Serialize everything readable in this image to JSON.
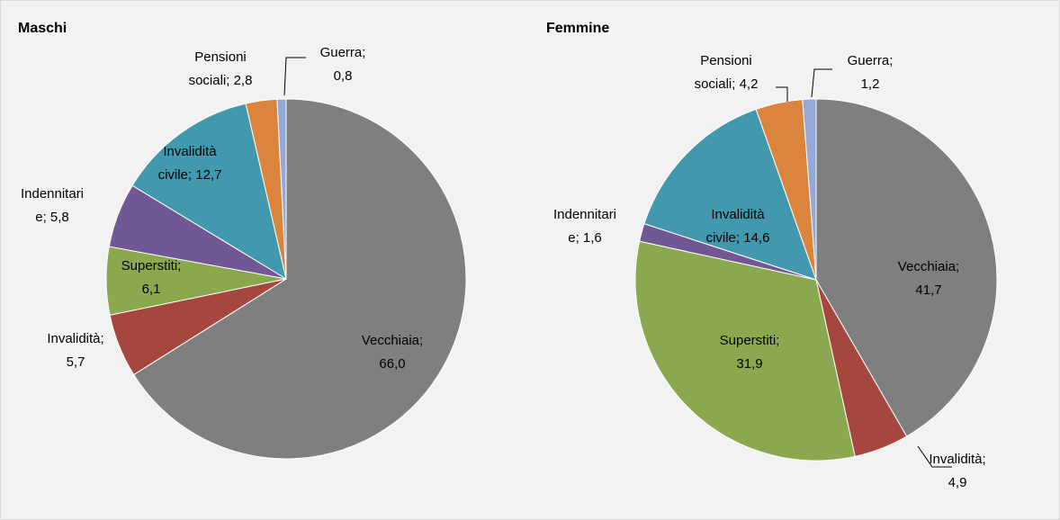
{
  "chart_data": [
    {
      "type": "pie",
      "title": "Maschi",
      "categories": [
        "Vecchiaia",
        "Invalidità",
        "Superstiti",
        "Indennitarie",
        "Invalidità civile",
        "Pensioni sociali",
        "Guerra"
      ],
      "values": [
        66.0,
        5.7,
        6.1,
        5.8,
        12.7,
        2.8,
        0.8
      ],
      "value_labels": [
        "Vecchiaia; 66,0",
        "Invalidità; 5,7",
        "Superstiti; 6,1",
        "Indennitarie; 5,8",
        "Invalidità civile; 12,7",
        "Pensioni sociali; 2,8",
        "Guerra; 0,8"
      ],
      "colors": [
        "#7f7f7f",
        "#a5463f",
        "#8aa84d",
        "#715895",
        "#4298ad",
        "#db843d",
        "#95a9d6"
      ]
    },
    {
      "type": "pie",
      "title": "Femmine",
      "categories": [
        "Vecchiaia",
        "Invalidità",
        "Superstiti",
        "Indennitarie",
        "Invalidità civile",
        "Pensioni sociali",
        "Guerra"
      ],
      "values": [
        41.7,
        4.9,
        31.9,
        1.6,
        14.6,
        4.2,
        1.2
      ],
      "value_labels": [
        "Vecchiaia; 41,7",
        "Invalidità; 4,9",
        "Superstiti; 31,9",
        "Indennitarie; 1,6",
        "Invalidità civile; 14,6",
        "Pensioni sociali; 4,2",
        "Guerra; 1,2"
      ],
      "colors": [
        "#7f7f7f",
        "#a5463f",
        "#8aa84d",
        "#715895",
        "#4298ad",
        "#db843d",
        "#95a9d6"
      ]
    }
  ]
}
